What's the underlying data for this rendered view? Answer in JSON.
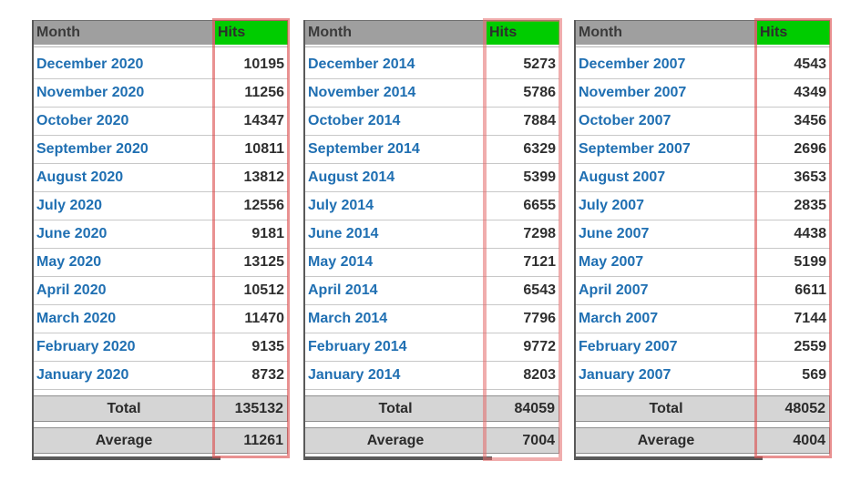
{
  "labels": {
    "month_header": "Month",
    "hits_header": "Hits",
    "total": "Total",
    "average": "Average"
  },
  "colors": {
    "hits_header_bg": "#00CC00",
    "month_header_bg": "#9F9F9F",
    "month_link_blue": "#1F6FB2",
    "hits_value_text": "#2F2F2F",
    "summary_row_bg": "#D5D5D5",
    "annotation_red": "#DB4D4D",
    "table_border_dark": "#595959",
    "row_divider": "#C8C8C8"
  },
  "tables": [
    {
      "name": "2020",
      "rows": [
        {
          "month": "December 2020",
          "hits": "10195"
        },
        {
          "month": "November 2020",
          "hits": "11256"
        },
        {
          "month": "October 2020",
          "hits": "14347"
        },
        {
          "month": "September 2020",
          "hits": "10811"
        },
        {
          "month": "August 2020",
          "hits": "13812"
        },
        {
          "month": "July 2020",
          "hits": "12556"
        },
        {
          "month": "June 2020",
          "hits": "9181"
        },
        {
          "month": "May 2020",
          "hits": "13125"
        },
        {
          "month": "April 2020",
          "hits": "10512"
        },
        {
          "month": "March 2020",
          "hits": "11470"
        },
        {
          "month": "February 2020",
          "hits": "9135"
        },
        {
          "month": "January 2020",
          "hits": "8732"
        }
      ],
      "total": "135132",
      "average": "11261"
    },
    {
      "name": "2014",
      "rows": [
        {
          "month": "December 2014",
          "hits": "5273"
        },
        {
          "month": "November 2014",
          "hits": "5786"
        },
        {
          "month": "October 2014",
          "hits": "7884"
        },
        {
          "month": "September 2014",
          "hits": "6329"
        },
        {
          "month": "August 2014",
          "hits": "5399"
        },
        {
          "month": "July 2014",
          "hits": "6655"
        },
        {
          "month": "June 2014",
          "hits": "7298"
        },
        {
          "month": "May 2014",
          "hits": "7121"
        },
        {
          "month": "April 2014",
          "hits": "6543"
        },
        {
          "month": "March 2014",
          "hits": "7796"
        },
        {
          "month": "February 2014",
          "hits": "9772"
        },
        {
          "month": "January 2014",
          "hits": "8203"
        }
      ],
      "total": "84059",
      "average": "7004"
    },
    {
      "name": "2007",
      "rows": [
        {
          "month": "December 2007",
          "hits": "4543"
        },
        {
          "month": "November 2007",
          "hits": "4349"
        },
        {
          "month": "October 2007",
          "hits": "3456"
        },
        {
          "month": "September 2007",
          "hits": "2696"
        },
        {
          "month": "August 2007",
          "hits": "3653"
        },
        {
          "month": "July 2007",
          "hits": "2835"
        },
        {
          "month": "June 2007",
          "hits": "4438"
        },
        {
          "month": "May 2007",
          "hits": "5199"
        },
        {
          "month": "April 2007",
          "hits": "6611"
        },
        {
          "month": "March 2007",
          "hits": "7144"
        },
        {
          "month": "February 2007",
          "hits": "2559"
        },
        {
          "month": "January 2007",
          "hits": "569"
        }
      ],
      "total": "48052",
      "average": "4004"
    }
  ]
}
